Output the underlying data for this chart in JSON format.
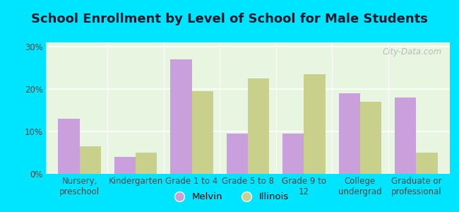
{
  "title": "School Enrollment by Level of School for Male Students",
  "categories": [
    "Nursery,\npreschool",
    "Kindergarten",
    "Grade 1 to 4",
    "Grade 5 to 8",
    "Grade 9 to\n12",
    "College\nundergrad",
    "Graduate or\nprofessional"
  ],
  "melvin": [
    13,
    4,
    27,
    9.5,
    9.5,
    19,
    18
  ],
  "illinois": [
    6.5,
    5,
    19.5,
    22.5,
    23.5,
    17,
    5
  ],
  "melvin_color": "#c9a0dc",
  "illinois_color": "#c8d08c",
  "background_outer": "#00e5ff",
  "background_inner_top": "#e8f5e0",
  "background_inner_bottom": "#f5fff0",
  "title_color": "#1a1a2e",
  "ylabel_ticks": [
    "0%",
    "10%",
    "20%",
    "30%"
  ],
  "yticks": [
    0,
    10,
    20,
    30
  ],
  "ylim": [
    0,
    31
  ],
  "bar_width": 0.38,
  "legend_melvin": "Melvin",
  "legend_illinois": "Illinois",
  "title_fontsize": 13,
  "tick_fontsize": 8.5,
  "legend_fontsize": 9.5,
  "watermark": "City-Data.com"
}
